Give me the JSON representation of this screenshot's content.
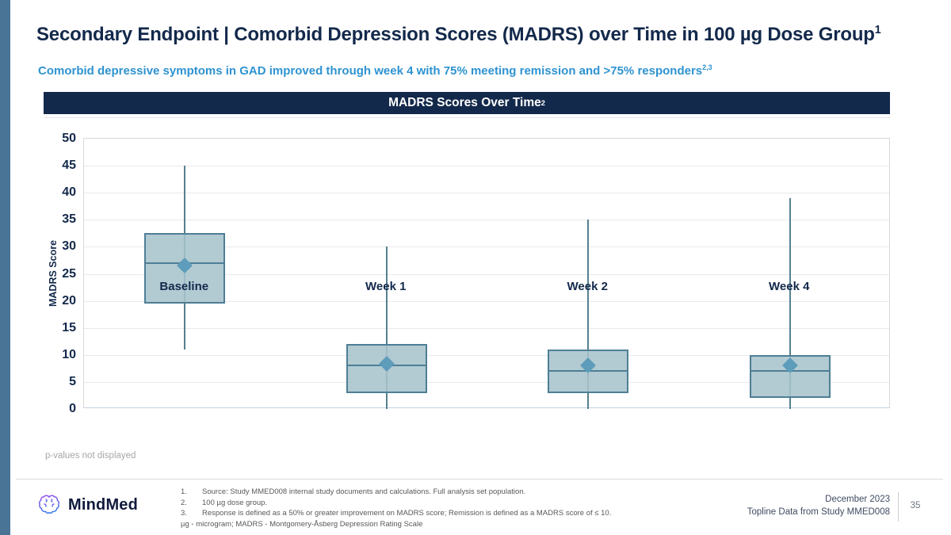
{
  "slide": {
    "title_main": "Secondary Endpoint | Comorbid Depression Scores (MADRS) over Time in 100 µg Dose Group",
    "title_sup": "1",
    "subtitle_main": "Comorbid depressive symptoms in GAD improved through week 4 with 75% meeting remission and >75% responders",
    "subtitle_sup": "2,3"
  },
  "chart_header": {
    "text": "MADRS Scores Over Time",
    "sup": "2"
  },
  "chart_note": "p-values not displayed",
  "chart_data": {
    "type": "boxplot",
    "title": "MADRS Scores Over Time",
    "ylabel": "MADRS Score",
    "ylim": [
      0,
      50
    ],
    "ytick_step": 5,
    "grid": "horizontal",
    "legend": "none",
    "categories": [
      "Baseline",
      "Week 1",
      "Week 2",
      "Week 4"
    ],
    "boxes": [
      {
        "category": "Baseline",
        "whisker_low": 11,
        "q1": 19.5,
        "median": 27,
        "q3": 32.5,
        "whisker_high": 45,
        "mean": 26.5
      },
      {
        "category": "Week 1",
        "whisker_low": 0,
        "q1": 3,
        "median": 8,
        "q3": 12,
        "whisker_high": 30,
        "mean": 8.3
      },
      {
        "category": "Week 2",
        "whisker_low": 0,
        "q1": 3,
        "median": 7,
        "q3": 11,
        "whisker_high": 35,
        "mean": 8.1
      },
      {
        "category": "Week 4",
        "whisker_low": 0,
        "q1": 2,
        "median": 7,
        "q3": 10,
        "whisker_high": 39,
        "mean": 8.1
      }
    ]
  },
  "footer": {
    "logo_text": "MindMed",
    "footnotes": [
      {
        "num": "1.",
        "text": "Source: Study MMED008 internal study documents and calculations. Full analysis set population."
      },
      {
        "num": "2.",
        "text": "100 µg dose group."
      },
      {
        "num": "3.",
        "text": "Response is defined as a 50% or greater improvement on MADRS score; Remission is defined as a MADRS score of ≤ 10."
      }
    ],
    "abbreviations": "µg - microgram; MADRS - Montgomery-Åsberg Depression Rating Scale",
    "date": "December 2023",
    "source": "Topline Data from Study MMED008",
    "page_number": "35"
  },
  "colors": {
    "accent_bar": "#4a7495",
    "navy": "#13294b",
    "subtitle_blue": "#2e93d1",
    "box_fill": "#a7c3cc",
    "box_border": "#4e7e95",
    "whisker": "#56808f",
    "mean_marker": "#5d9cba"
  }
}
